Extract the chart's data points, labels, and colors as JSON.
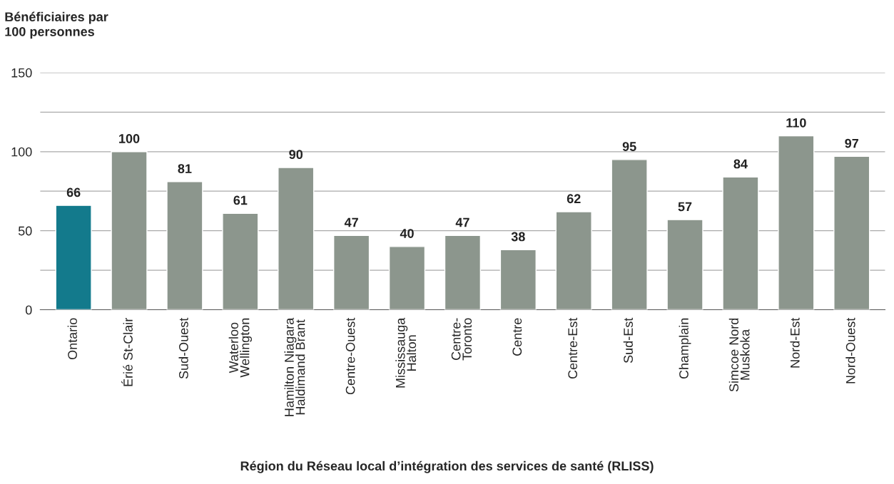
{
  "chart_data": {
    "type": "bar",
    "ylabel": "Bénéficiaires par\n100 personnes",
    "xlabel": "Région du Réseau local d’intégration des services de santé (RLISS)",
    "categories": [
      "Ontario",
      "Érié St-Clair",
      "Sud-Ouest",
      "Waterloo\nWellington",
      "Hamilton Niagara\nHaldimand Brant",
      "Centre-Ouest",
      "Mississauga\nHalton",
      "Centre-\nToronto",
      "Centre",
      "Centre-Est",
      "Sud-Est",
      "Champlain",
      "Simcoe Nord\nMuskoka",
      "Nord-Est",
      "Nord-Ouest"
    ],
    "values": [
      66,
      100,
      81,
      61,
      90,
      47,
      40,
      47,
      38,
      62,
      95,
      57,
      84,
      110,
      97
    ],
    "colors": [
      "#137a8c",
      "#8c968d",
      "#8c968d",
      "#8c968d",
      "#8c968d",
      "#8c968d",
      "#8c968d",
      "#8c968d",
      "#8c968d",
      "#8c968d",
      "#8c968d",
      "#8c968d",
      "#8c968d",
      "#8c968d",
      "#8c968d"
    ],
    "ylim": [
      0,
      150
    ],
    "yticks": [
      0,
      {
        "value": 25,
        "label": null
      },
      50,
      {
        "value": 75,
        "label": null
      },
      100,
      {
        "value": 125,
        "label": null
      },
      150
    ],
    "grid": "y",
    "data_labels": true
  }
}
